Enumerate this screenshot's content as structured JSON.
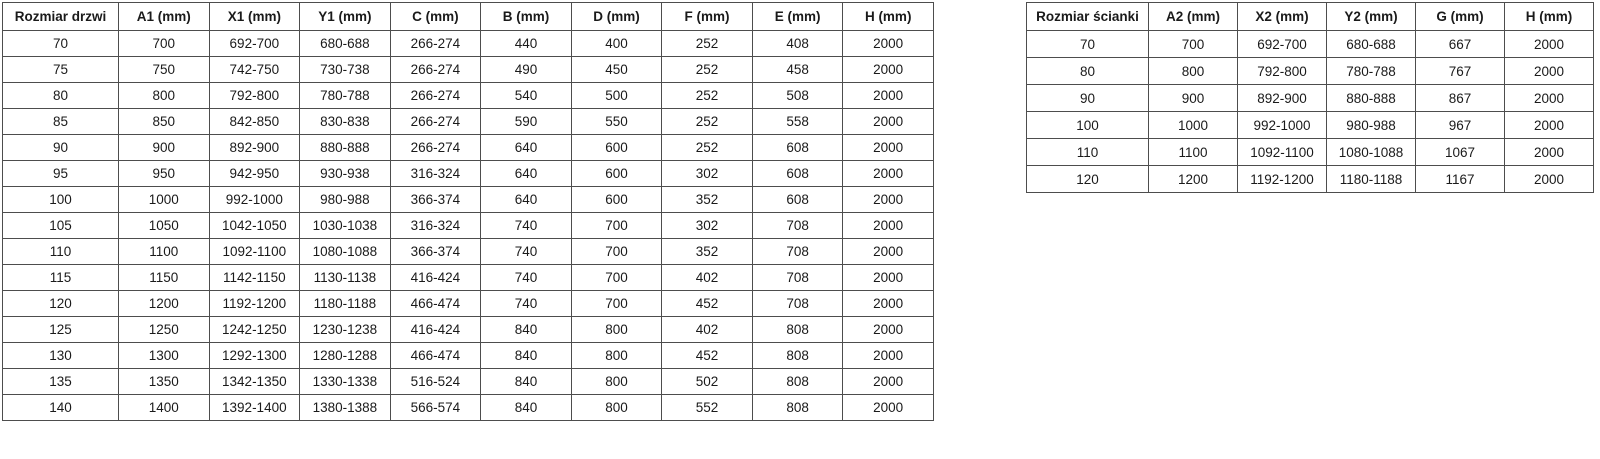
{
  "page": {
    "background_color": "#ffffff",
    "border_color": "#4d4d4d",
    "text_color": "#1a1a1a"
  },
  "door_table": {
    "name": "door-dimensions-table",
    "headers": [
      "Rozmiar drzwi",
      "A1 (mm)",
      "X1 (mm)",
      "Y1 (mm)",
      "C (mm)",
      "B (mm)",
      "D (mm)",
      "F (mm)",
      "E (mm)",
      "H (mm)"
    ],
    "rows": [
      [
        "70",
        "700",
        "692-700",
        "680-688",
        "266-274",
        "440",
        "400",
        "252",
        "408",
        "2000"
      ],
      [
        "75",
        "750",
        "742-750",
        "730-738",
        "266-274",
        "490",
        "450",
        "252",
        "458",
        "2000"
      ],
      [
        "80",
        "800",
        "792-800",
        "780-788",
        "266-274",
        "540",
        "500",
        "252",
        "508",
        "2000"
      ],
      [
        "85",
        "850",
        "842-850",
        "830-838",
        "266-274",
        "590",
        "550",
        "252",
        "558",
        "2000"
      ],
      [
        "90",
        "900",
        "892-900",
        "880-888",
        "266-274",
        "640",
        "600",
        "252",
        "608",
        "2000"
      ],
      [
        "95",
        "950",
        "942-950",
        "930-938",
        "316-324",
        "640",
        "600",
        "302",
        "608",
        "2000"
      ],
      [
        "100",
        "1000",
        "992-1000",
        "980-988",
        "366-374",
        "640",
        "600",
        "352",
        "608",
        "2000"
      ],
      [
        "105",
        "1050",
        "1042-1050",
        "1030-1038",
        "316-324",
        "740",
        "700",
        "302",
        "708",
        "2000"
      ],
      [
        "110",
        "1100",
        "1092-1100",
        "1080-1088",
        "366-374",
        "740",
        "700",
        "352",
        "708",
        "2000"
      ],
      [
        "115",
        "1150",
        "1142-1150",
        "1130-1138",
        "416-424",
        "740",
        "700",
        "402",
        "708",
        "2000"
      ],
      [
        "120",
        "1200",
        "1192-1200",
        "1180-1188",
        "466-474",
        "740",
        "700",
        "452",
        "708",
        "2000"
      ],
      [
        "125",
        "1250",
        "1242-1250",
        "1230-1238",
        "416-424",
        "840",
        "800",
        "402",
        "808",
        "2000"
      ],
      [
        "130",
        "1300",
        "1292-1300",
        "1280-1288",
        "466-474",
        "840",
        "800",
        "452",
        "808",
        "2000"
      ],
      [
        "135",
        "1350",
        "1342-1350",
        "1330-1338",
        "516-524",
        "840",
        "800",
        "502",
        "808",
        "2000"
      ],
      [
        "140",
        "1400",
        "1392-1400",
        "1380-1388",
        "566-574",
        "840",
        "800",
        "552",
        "808",
        "2000"
      ]
    ]
  },
  "wall_table": {
    "name": "wall-dimensions-table",
    "headers": [
      "Rozmiar ścianki",
      "A2 (mm)",
      "X2 (mm)",
      "Y2 (mm)",
      "G (mm)",
      "H (mm)"
    ],
    "rows": [
      [
        "70",
        "700",
        "692-700",
        "680-688",
        "667",
        "2000"
      ],
      [
        "80",
        "800",
        "792-800",
        "780-788",
        "767",
        "2000"
      ],
      [
        "90",
        "900",
        "892-900",
        "880-888",
        "867",
        "2000"
      ],
      [
        "100",
        "1000",
        "992-1000",
        "980-988",
        "967",
        "2000"
      ],
      [
        "110",
        "1100",
        "1092-1100",
        "1080-1088",
        "1067",
        "2000"
      ],
      [
        "120",
        "1200",
        "1192-1200",
        "1180-1188",
        "1167",
        "2000"
      ]
    ]
  }
}
